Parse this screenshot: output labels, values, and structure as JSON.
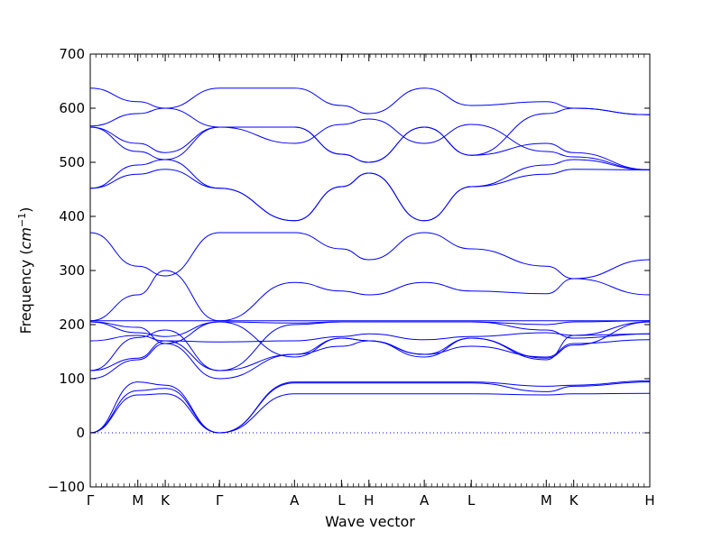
{
  "chart_data": {
    "type": "line",
    "xlabel": "Wave vector",
    "ylabel_main": "Frequency (",
    "ylabel_unit": "cm",
    "ylabel_exp": "−1",
    "ylabel_close": ")",
    "ylim": [
      -100,
      700
    ],
    "yticks": [
      {
        "value": -100,
        "label": "−100"
      },
      {
        "value": 0,
        "label": "0"
      },
      {
        "value": 100,
        "label": "100"
      },
      {
        "value": 200,
        "label": "200"
      },
      {
        "value": 300,
        "label": "300"
      },
      {
        "value": 400,
        "label": "400"
      },
      {
        "value": 500,
        "label": "500"
      },
      {
        "value": 600,
        "label": "600"
      },
      {
        "value": 700,
        "label": "700"
      }
    ],
    "xlim": [
      0,
      1
    ],
    "high_symmetry_points": [
      {
        "label": "Γ",
        "x": 0.0
      },
      {
        "label": "M",
        "x": 0.085
      },
      {
        "label": "K",
        "x": 0.134
      },
      {
        "label": "Γ",
        "x": 0.231
      },
      {
        "label": "A",
        "x": 0.365
      },
      {
        "label": "L",
        "x": 0.449
      },
      {
        "label": "H",
        "x": 0.498
      },
      {
        "label": "A",
        "x": 0.597
      },
      {
        "label": "L",
        "x": 0.681
      },
      {
        "label": "M",
        "x": 0.815
      },
      {
        "label": "K",
        "x": 0.864
      },
      {
        "label": "H",
        "x": 1.0
      }
    ],
    "zero_line": 0,
    "line_color": "#0000ff",
    "bands": [
      {
        "x": [
          0,
          0.085,
          0.134,
          0.231,
          0.365,
          0.449,
          0.498,
          0.597,
          0.681,
          0.815,
          0.864,
          1.0
        ],
        "y": [
          0,
          70,
          72,
          0,
          72,
          72,
          72,
          72,
          72,
          70,
          72,
          73
        ]
      },
      {
        "x": [
          0,
          0.085,
          0.134,
          0.231,
          0.365,
          0.449,
          0.498,
          0.597,
          0.681,
          0.815,
          0.864,
          1.0
        ],
        "y": [
          0,
          78,
          82,
          0,
          92,
          92,
          92,
          92,
          92,
          76,
          86,
          94
        ]
      },
      {
        "x": [
          0,
          0.085,
          0.134,
          0.231,
          0.365,
          0.449,
          0.498,
          0.597,
          0.681,
          0.815,
          0.864,
          1.0
        ],
        "y": [
          0,
          94,
          88,
          0,
          94,
          94,
          94,
          94,
          94,
          86,
          88,
          96
        ]
      },
      {
        "x": [
          0,
          0.085,
          0.134,
          0.231,
          0.365,
          0.449,
          0.498,
          0.597,
          0.681,
          0.815,
          0.864,
          1.0
        ],
        "y": [
          100,
          135,
          165,
          100,
          145,
          160,
          170,
          145,
          160,
          140,
          165,
          172
        ]
      },
      {
        "x": [
          0,
          0.085,
          0.134,
          0.231,
          0.365,
          0.449,
          0.498,
          0.597,
          0.681,
          0.815,
          0.864,
          1.0
        ],
        "y": [
          115,
          138,
          170,
          115,
          145,
          175,
          170,
          145,
          175,
          138,
          162,
          205
        ]
      },
      {
        "x": [
          0,
          0.085,
          0.134,
          0.231,
          0.365,
          0.449,
          0.498,
          0.597,
          0.681,
          0.815,
          0.864,
          1.0
        ],
        "y": [
          115,
          176,
          190,
          115,
          200,
          205,
          205,
          205,
          205,
          190,
          175,
          183
        ]
      },
      {
        "x": [
          0,
          0.085,
          0.134,
          0.231,
          0.365,
          0.449,
          0.498,
          0.597,
          0.681,
          0.815,
          0.864,
          1.0
        ],
        "y": [
          170,
          180,
          170,
          168,
          170,
          178,
          183,
          172,
          178,
          185,
          180,
          183
        ]
      },
      {
        "x": [
          0,
          0.085,
          0.134,
          0.231,
          0.365,
          0.449,
          0.498,
          0.597,
          0.681,
          0.815,
          0.864,
          1.0
        ],
        "y": [
          205,
          185,
          178,
          205,
          140,
          175,
          170,
          140,
          175,
          135,
          180,
          205
        ]
      },
      {
        "x": [
          0,
          0.085,
          0.134,
          0.231,
          0.365,
          0.449,
          0.498,
          0.597,
          0.681,
          0.815,
          0.864,
          1.0
        ],
        "y": [
          205,
          195,
          165,
          205,
          203,
          205,
          205,
          205,
          205,
          200,
          205,
          207
        ]
      },
      {
        "x": [
          0,
          0.085,
          0.134,
          0.231,
          0.365,
          0.449,
          0.498,
          0.597,
          0.681,
          0.815,
          0.864,
          1.0
        ],
        "y": [
          207,
          207,
          207,
          207,
          207,
          207,
          207,
          207,
          207,
          207,
          207,
          207
        ]
      },
      {
        "x": [
          0,
          0.085,
          0.134,
          0.231,
          0.365,
          0.449,
          0.498,
          0.597,
          0.681,
          0.815,
          0.864,
          1.0
        ],
        "y": [
          207,
          255,
          300,
          207,
          278,
          262,
          255,
          278,
          262,
          257,
          285,
          255
        ]
      },
      {
        "x": [
          0,
          0.085,
          0.134,
          0.231,
          0.365,
          0.449,
          0.498,
          0.597,
          0.681,
          0.815,
          0.864,
          1.0
        ],
        "y": [
          370,
          308,
          290,
          370,
          370,
          340,
          320,
          370,
          340,
          308,
          285,
          320
        ]
      },
      {
        "x": [
          0,
          0.085,
          0.134,
          0.231,
          0.365,
          0.449,
          0.498,
          0.597,
          0.681,
          0.815,
          0.864,
          1.0
        ],
        "y": [
          452,
          478,
          487,
          452,
          392,
          455,
          480,
          392,
          455,
          478,
          487,
          486
        ]
      },
      {
        "x": [
          0,
          0.085,
          0.134,
          0.231,
          0.365,
          0.449,
          0.498,
          0.597,
          0.681,
          0.815,
          0.864,
          1.0
        ],
        "y": [
          452,
          495,
          505,
          452,
          392,
          455,
          480,
          392,
          455,
          495,
          505,
          486
        ]
      },
      {
        "x": [
          0,
          0.085,
          0.134,
          0.231,
          0.365,
          0.449,
          0.498,
          0.597,
          0.681,
          0.815,
          0.864,
          1.0
        ],
        "y": [
          565,
          535,
          518,
          565,
          565,
          515,
          500,
          565,
          513,
          535,
          518,
          486
        ]
      },
      {
        "x": [
          0,
          0.085,
          0.134,
          0.231,
          0.365,
          0.449,
          0.498,
          0.597,
          0.681,
          0.815,
          0.864,
          1.0
        ],
        "y": [
          565,
          520,
          505,
          565,
          535,
          570,
          580,
          535,
          570,
          520,
          510,
          486
        ]
      },
      {
        "x": [
          0,
          0.085,
          0.134,
          0.231,
          0.365,
          0.449,
          0.498,
          0.597,
          0.681,
          0.815,
          0.864,
          1.0
        ],
        "y": [
          567,
          590,
          600,
          565,
          565,
          515,
          500,
          565,
          513,
          590,
          600,
          588
        ]
      },
      {
        "x": [
          0,
          0.085,
          0.134,
          0.231,
          0.365,
          0.449,
          0.498,
          0.597,
          0.681,
          0.815,
          0.864,
          1.0
        ],
        "y": [
          637,
          612,
          600,
          637,
          637,
          605,
          590,
          637,
          605,
          612,
          600,
          588
        ]
      }
    ]
  }
}
